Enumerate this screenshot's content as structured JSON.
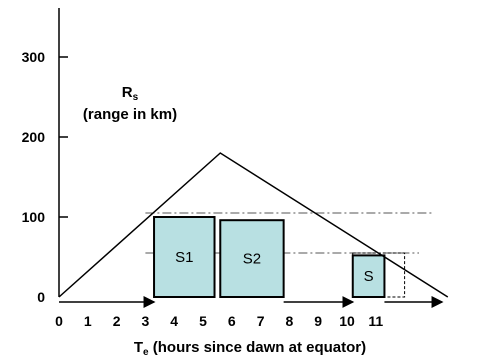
{
  "chart_data": {
    "type": "area",
    "title": "",
    "xlabel": {
      "main": "T",
      "sub": "e",
      "rest": " (hours since dawn at equator)"
    },
    "ylabel": {
      "main": "R",
      "sub": "s",
      "line2": "(range in km)"
    },
    "xlim": [
      0,
      13
    ],
    "ylim": [
      0,
      350
    ],
    "x_ticks": [
      "0",
      "1",
      "2",
      "3",
      "4",
      "5",
      "6",
      "7",
      "8",
      "9",
      "10",
      "11"
    ],
    "y_ticks": [
      "0",
      "100",
      "200",
      "300"
    ],
    "envelope": {
      "points": [
        [
          0,
          0
        ],
        [
          5.6,
          180
        ],
        [
          13.5,
          0
        ]
      ]
    },
    "reference_lines": [
      {
        "y": 105,
        "x_range": [
          3,
          13
        ],
        "style": "dash-dot"
      },
      {
        "y": 55,
        "x_range": [
          3,
          12.5
        ],
        "style": "dash-dot"
      }
    ],
    "boxes": [
      {
        "label": "S1",
        "x0": 3.3,
        "x1": 5.4,
        "height": 100
      },
      {
        "label": "S2",
        "x0": 5.6,
        "x1": 7.8,
        "height": 96
      },
      {
        "label": "S",
        "x0": 10.2,
        "x1": 11.3,
        "height": 52
      }
    ],
    "outline_box": {
      "x0": 10.2,
      "x1": 12.0,
      "height": 55
    },
    "arrows": [
      {
        "x0": 0,
        "x1": 3.3
      },
      {
        "x0": 7.8,
        "x1": 10.2
      },
      {
        "x0": 11.3,
        "x1": 13.3
      }
    ],
    "colors": {
      "box_fill": "#b8e0e2",
      "line": "#000000",
      "axis": "#000000"
    }
  }
}
